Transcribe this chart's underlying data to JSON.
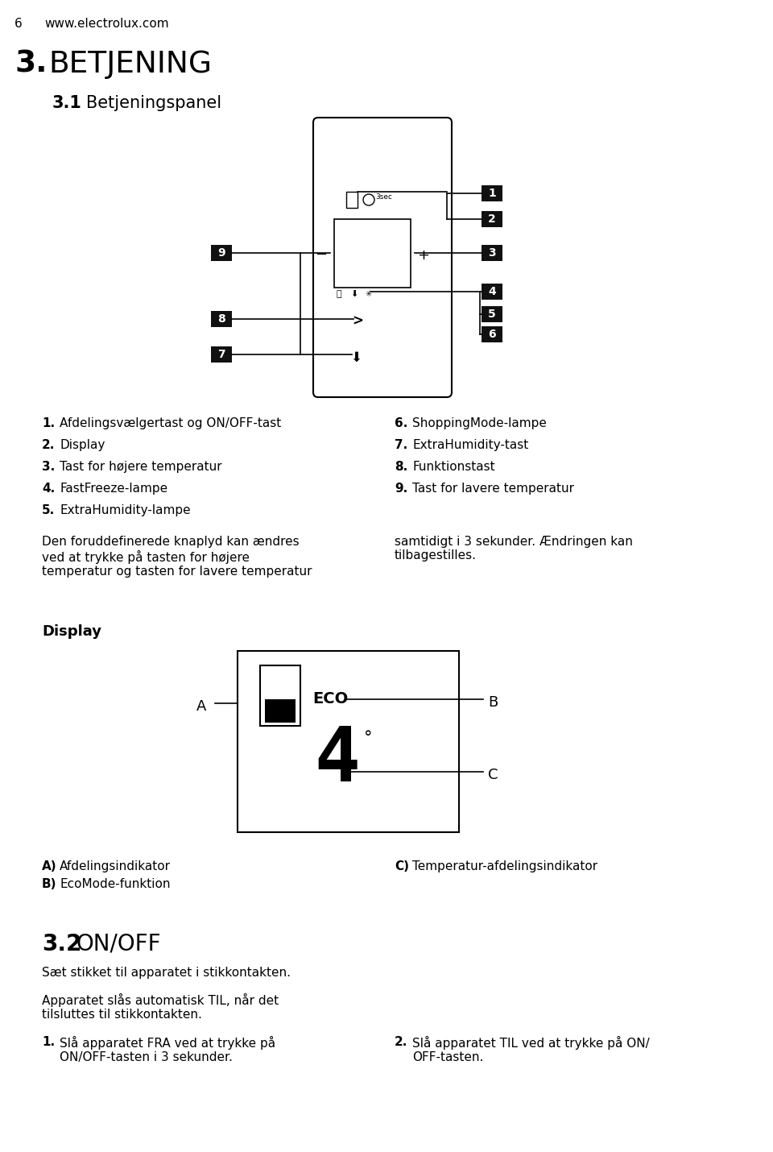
{
  "page_num": "6",
  "website": "www.electrolux.com",
  "section_num": "3.",
  "section_title": "BETJENING",
  "subsection_num": "3.1",
  "subsection_title": "Betjeningspanel",
  "list_items_left": [
    [
      "1.",
      "Afdelingsvælgertast og ON/OFF-tast"
    ],
    [
      "2.",
      "Display"
    ],
    [
      "3.",
      "Tast for højere temperatur"
    ],
    [
      "4.",
      "FastFreeze-lampe"
    ],
    [
      "5.",
      "ExtraHumidity-lampe"
    ]
  ],
  "list_items_right": [
    [
      "6.",
      "ShoppingMode-lampe"
    ],
    [
      "7.",
      "ExtraHumidity-tast"
    ],
    [
      "8.",
      "Funktionstast"
    ],
    [
      "9.",
      "Tast for lavere temperatur"
    ]
  ],
  "paragraph_left": "Den foruddefinerede knaplyd kan ændres\nved at trykke på tasten for højere\ntemperatur og tasten for lavere temperatur",
  "paragraph_right": "samtidigt i 3 sekunder. Ændringen kan\ntilbagestilles.",
  "display_label": "Display",
  "label_A": "A",
  "label_B": "B",
  "label_C": "C",
  "label_A_desc": "Afdelingsindikator",
  "label_B_desc": "EcoMode-funktion",
  "label_C_desc": "Temperatur-afdelingsindikator",
  "section2_num": "3.2",
  "section2_title": "ON/OFF",
  "para2_intro": "Sæt stikket til apparatet i stikkontakten.",
  "para2_body": "Apparatet slås automatisk TIL, når det\ntilsluttes til stikkontakten.",
  "list2_left_num": "1.",
  "list2_left_text": "Slå apparatet FRA ved at trykke på\nON/OFF-tasten i 3 sekunder.",
  "list2_right_num": "2.",
  "list2_right_text": "Slå apparatet TIL ved at trykke på ON/\nOFF-tasten.",
  "bg_color": "#ffffff",
  "text_color": "#000000",
  "label_box_color": "#111111"
}
